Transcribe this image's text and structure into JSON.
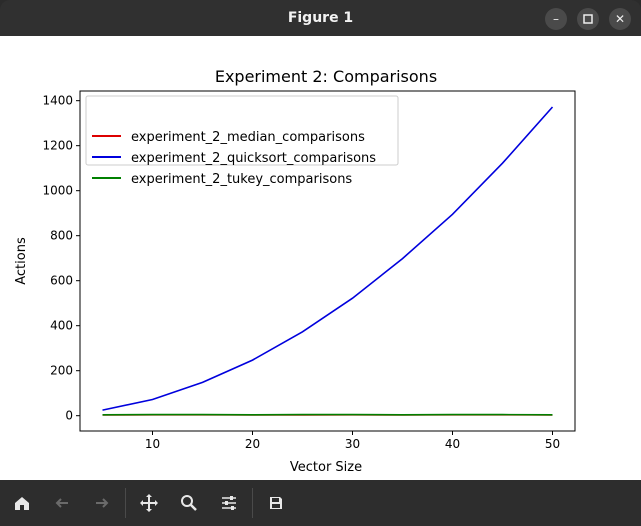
{
  "window": {
    "title": "Figure 1",
    "buttons": [
      "minimize-icon",
      "maximize-icon",
      "close-icon"
    ]
  },
  "toolbar": {
    "icons": [
      "home-icon",
      "back-arrow-icon",
      "forward-arrow-icon",
      "pan-icon",
      "zoom-icon",
      "configure-subplots-icon",
      "save-icon"
    ]
  },
  "chart_data": {
    "type": "line",
    "title": "Experiment 2: Comparisons",
    "xlabel": "Vector Size",
    "ylabel": "Actions",
    "xlim": [
      2.75,
      52.25
    ],
    "ylim": [
      -68,
      1443
    ],
    "xticks": [
      "10",
      "20",
      "30",
      "40",
      "50"
    ],
    "yticks": [
      "0",
      "200",
      "400",
      "600",
      "800",
      "1000",
      "1200",
      "1400"
    ],
    "legend_position": "top-left",
    "grid": false,
    "x": [
      5,
      10,
      15,
      20,
      25,
      30,
      35,
      40,
      45,
      50
    ],
    "series": [
      {
        "name": "experiment_2_median_comparisons",
        "color": "#dd0000",
        "values": [
          3,
          4,
          4,
          3,
          3,
          4,
          3,
          4,
          4,
          3
        ]
      },
      {
        "name": "experiment_2_quicksort_comparisons",
        "color": "#0000dd",
        "values": [
          25,
          72,
          148,
          247,
          373,
          522,
          698,
          895,
          1122,
          1372
        ]
      },
      {
        "name": "experiment_2_tukey_comparisons",
        "color": "#008000",
        "values": [
          4,
          5,
          5,
          4,
          5,
          5,
          4,
          5,
          5,
          4
        ]
      }
    ]
  }
}
